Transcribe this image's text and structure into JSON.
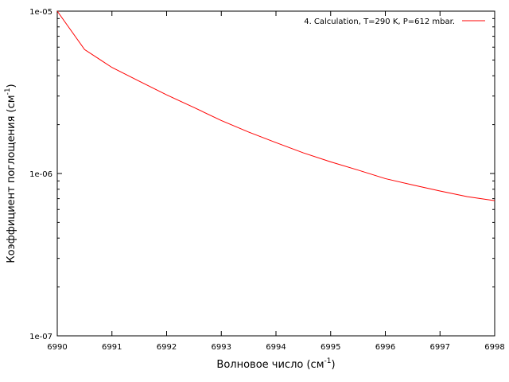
{
  "chart_data": {
    "type": "line",
    "title": "",
    "xlabel": "Волновое число (см",
    "xlabel_sup": "-1",
    "xlabel_tail": ")",
    "ylabel": "Коэффициент поглощения (см",
    "ylabel_sup": "-1",
    "ylabel_tail": ")",
    "xlim": [
      6990,
      6998
    ],
    "ylim": [
      1e-07,
      1e-05
    ],
    "yscale": "log",
    "xticks": [
      6990,
      6991,
      6992,
      6993,
      6994,
      6995,
      6996,
      6997,
      6998
    ],
    "xtick_labels": [
      "6990",
      "6991",
      "6992",
      "6993",
      "6994",
      "6995",
      "6996",
      "6997",
      "6998"
    ],
    "yticks": [
      1e-07,
      1e-06,
      1e-05
    ],
    "ytick_labels": [
      "1e-07",
      "1e-06",
      "1e-05"
    ],
    "grid": false,
    "legend_position": "top-right",
    "series": [
      {
        "name": "4. Calculation, T=290 K, P=612 mbar.",
        "color": "#ff0000",
        "x": [
          6990.0,
          6990.5,
          6991.0,
          6991.5,
          6992.0,
          6992.5,
          6993.0,
          6993.5,
          6994.0,
          6994.5,
          6995.0,
          6995.5,
          6996.0,
          6996.5,
          6997.0,
          6997.5,
          6998.0
        ],
        "y": [
          1e-05,
          5.8e-06,
          4.5e-06,
          3.7e-06,
          3.05e-06,
          2.55e-06,
          2.12e-06,
          1.8e-06,
          1.55e-06,
          1.34e-06,
          1.18e-06,
          1.05e-06,
          9.3e-07,
          8.5e-07,
          7.8e-07,
          7.2e-07,
          6.8e-07
        ]
      }
    ]
  }
}
